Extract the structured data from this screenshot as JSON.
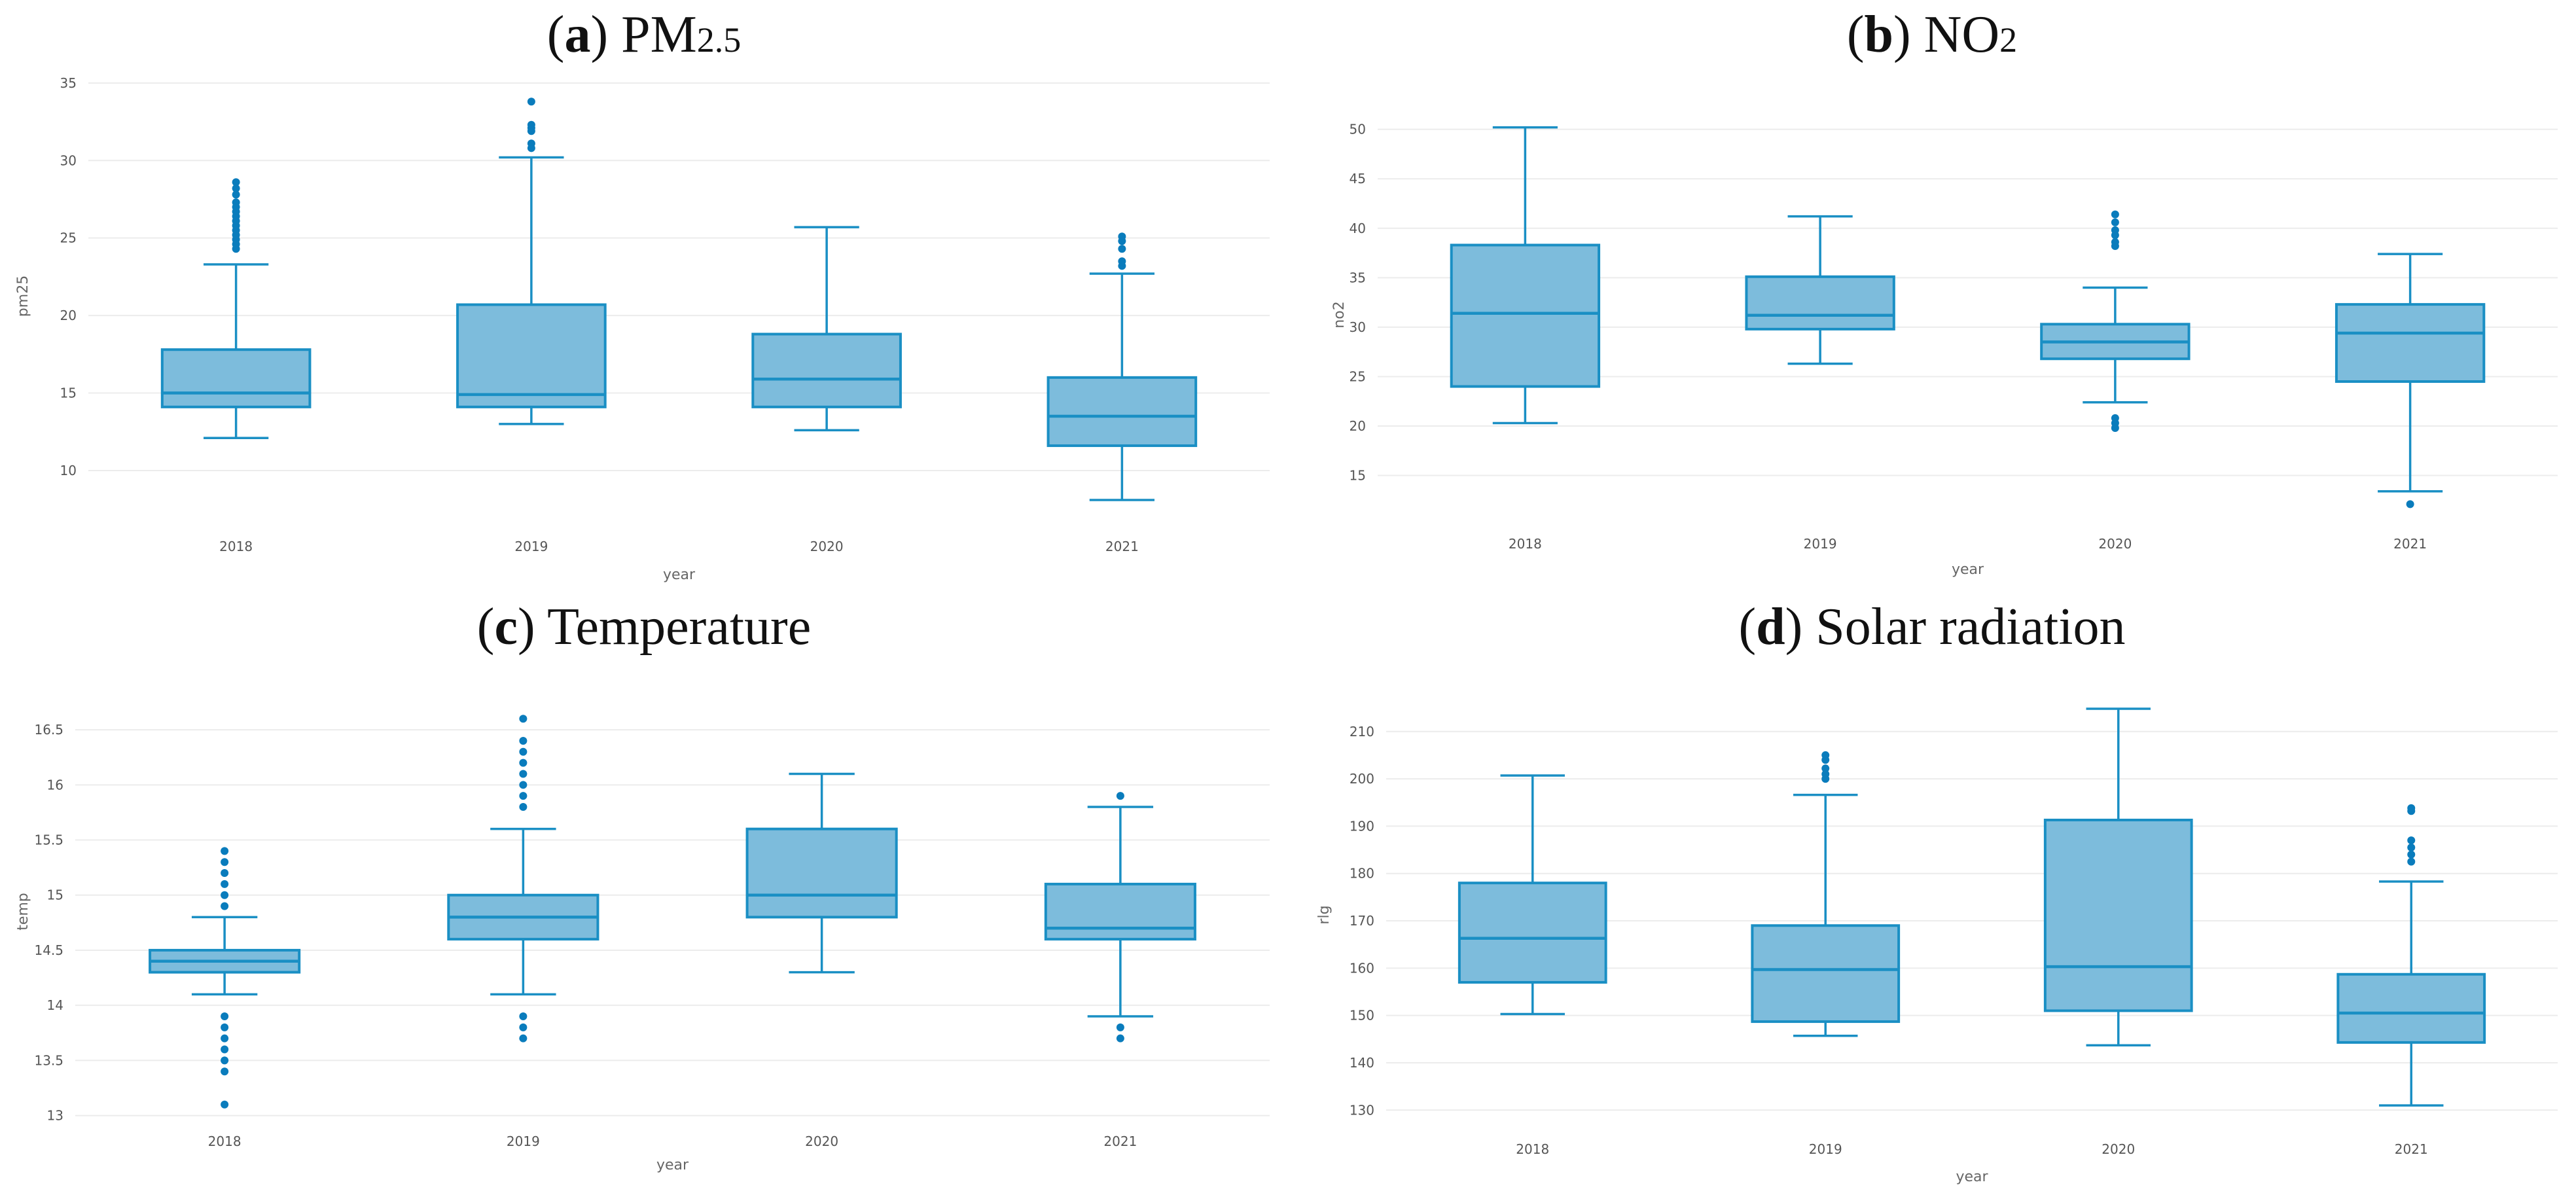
{
  "colors": {
    "box_fill": "#7dbcdc",
    "box_stroke": "#1a8fc4",
    "outlier": "#0a7cbc",
    "grid": "#ececec",
    "tick_text": "#555555",
    "axis_title": "#666666"
  },
  "panels": [
    {
      "letter": "a",
      "name": "PM",
      "sub": "2.5"
    },
    {
      "letter": "b",
      "name": "NO",
      "sub": "2"
    },
    {
      "letter": "c",
      "name": "Temperature",
      "sub": ""
    },
    {
      "letter": "d",
      "name": "Solar radiation",
      "sub": ""
    }
  ],
  "chart_data": [
    {
      "type": "box",
      "title": "(a) PM2.5",
      "xlabel": "year",
      "ylabel": "pm25",
      "categories": [
        "2018",
        "2019",
        "2020",
        "2021"
      ],
      "yticks": [
        10,
        15,
        20,
        25,
        30,
        35
      ],
      "ytick_labels": [
        "10",
        "15",
        "20",
        "25",
        "30",
        "35"
      ],
      "ylim": [
        7,
        35.5
      ],
      "boxes": [
        {
          "min": 12.1,
          "q1": 14.1,
          "median": 15.0,
          "q3": 17.8,
          "max": 23.3,
          "outliers": [
            24.3,
            24.6,
            24.9,
            25.2,
            25.5,
            25.8,
            26.1,
            26.4,
            26.7,
            27.0,
            27.3,
            27.8,
            28.2,
            28.6
          ]
        },
        {
          "min": 13.0,
          "q1": 14.1,
          "median": 14.9,
          "q3": 20.7,
          "max": 30.2,
          "outliers": [
            30.8,
            31.1,
            31.9,
            32.1,
            32.3,
            33.8
          ]
        },
        {
          "min": 12.6,
          "q1": 14.1,
          "median": 15.9,
          "q3": 18.8,
          "max": 25.7,
          "outliers": []
        },
        {
          "min": 8.1,
          "q1": 11.6,
          "median": 13.5,
          "q3": 16.0,
          "max": 22.7,
          "outliers": [
            23.2,
            23.5,
            24.3,
            24.8,
            25.1
          ]
        }
      ]
    },
    {
      "type": "box",
      "title": "(b) NO2",
      "xlabel": "year",
      "ylabel": "no2",
      "categories": [
        "2018",
        "2019",
        "2020",
        "2021"
      ],
      "yticks": [
        15,
        20,
        25,
        30,
        35,
        40,
        45,
        50
      ],
      "ytick_labels": [
        "15",
        "20",
        "25",
        "30",
        "35",
        "40",
        "45",
        "50"
      ],
      "ylim": [
        11,
        51.5
      ],
      "boxes": [
        {
          "min": 20.3,
          "q1": 24.0,
          "median": 31.4,
          "q3": 38.3,
          "max": 50.2,
          "outliers": []
        },
        {
          "min": 26.3,
          "q1": 29.8,
          "median": 31.2,
          "q3": 35.1,
          "max": 41.2,
          "outliers": []
        },
        {
          "min": 22.4,
          "q1": 26.8,
          "median": 28.5,
          "q3": 30.3,
          "max": 34.0,
          "outliers": [
            19.8,
            20.3,
            20.8,
            38.2,
            38.6,
            39.3,
            39.8,
            40.6,
            41.4
          ]
        },
        {
          "min": 13.4,
          "q1": 24.5,
          "median": 29.4,
          "q3": 32.3,
          "max": 37.4,
          "outliers": [
            12.1
          ]
        }
      ]
    },
    {
      "type": "box",
      "title": "(c) Temperature",
      "xlabel": "year",
      "ylabel": "temp",
      "categories": [
        "2018",
        "2019",
        "2020",
        "2021"
      ],
      "yticks": [
        13,
        13.5,
        14,
        14.5,
        15,
        15.5,
        16,
        16.5
      ],
      "ytick_labels": [
        "13",
        "13.5",
        "14",
        "14.5",
        "15",
        "15.5",
        "16",
        "16.5"
      ],
      "ylim": [
        12.95,
        16.75
      ],
      "boxes": [
        {
          "min": 14.1,
          "q1": 14.3,
          "median": 14.4,
          "q3": 14.5,
          "max": 14.8,
          "outliers": [
            13.1,
            13.4,
            13.5,
            13.6,
            13.7,
            13.8,
            13.9,
            14.9,
            15.0,
            15.1,
            15.2,
            15.3,
            15.4
          ]
        },
        {
          "min": 14.1,
          "q1": 14.6,
          "median": 14.8,
          "q3": 15.0,
          "max": 15.6,
          "outliers": [
            13.7,
            13.8,
            13.9,
            15.8,
            15.9,
            16.0,
            16.1,
            16.2,
            16.3,
            16.4,
            16.6
          ]
        },
        {
          "min": 14.3,
          "q1": 14.8,
          "median": 15.0,
          "q3": 15.6,
          "max": 16.1,
          "outliers": []
        },
        {
          "min": 13.9,
          "q1": 14.6,
          "median": 14.7,
          "q3": 15.1,
          "max": 15.8,
          "outliers": [
            13.7,
            13.8,
            15.9
          ]
        }
      ]
    },
    {
      "type": "box",
      "title": "(d) Solar radiation",
      "xlabel": "year",
      "ylabel": "rlg",
      "categories": [
        "2018",
        "2019",
        "2020",
        "2021"
      ],
      "yticks": [
        130,
        140,
        150,
        160,
        170,
        180,
        190,
        200,
        210
      ],
      "ytick_labels": [
        "130",
        "140",
        "150",
        "160",
        "170",
        "180",
        "190",
        "200",
        "210"
      ],
      "ylim": [
        127,
        215.5
      ],
      "boxes": [
        {
          "min": 150.3,
          "q1": 157.0,
          "median": 166.3,
          "q3": 178.0,
          "max": 200.7,
          "outliers": []
        },
        {
          "min": 145.7,
          "q1": 148.7,
          "median": 159.7,
          "q3": 169.0,
          "max": 196.6,
          "outliers": [
            200.0,
            201.0,
            202.2,
            204.0,
            205.0
          ]
        },
        {
          "min": 143.7,
          "q1": 151.0,
          "median": 160.3,
          "q3": 191.3,
          "max": 214.8,
          "outliers": []
        },
        {
          "min": 131.0,
          "q1": 144.3,
          "median": 150.5,
          "q3": 158.7,
          "max": 178.3,
          "outliers": [
            182.5,
            184.0,
            185.5,
            187.0,
            193.2,
            193.8
          ]
        }
      ]
    }
  ]
}
